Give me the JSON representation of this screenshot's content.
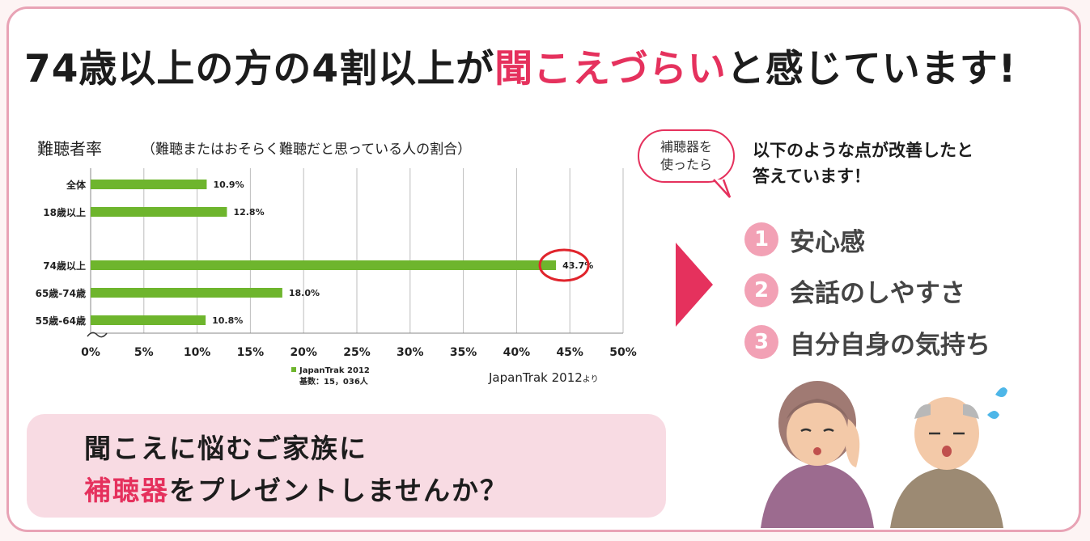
{
  "headline": {
    "part1": "74歳以上の方の4割以上が",
    "highlight": "聞こえづらい",
    "part2": "と感じています!"
  },
  "chart_header": {
    "title": "難聴者率",
    "subtitle": "（難聴またはおそらく難聴だと思っている人の割合）"
  },
  "chart_data": {
    "type": "bar",
    "orientation": "horizontal",
    "categories": [
      "全体",
      "18歳以上",
      "74歳以上",
      "65歳-74歳",
      "55歳-64歳"
    ],
    "values": [
      10.9,
      12.8,
      43.7,
      18.0,
      10.8
    ],
    "value_labels": [
      "10.9%",
      "12.8%",
      "43.7%",
      "18.0%",
      "10.8%"
    ],
    "xlim": [
      0,
      50
    ],
    "xticks": [
      "0%",
      "5%",
      "10%",
      "15%",
      "20%",
      "25%",
      "30%",
      "35%",
      "40%",
      "45%",
      "50%"
    ],
    "legend": {
      "series": "JapanTrak 2012",
      "base": "基数：15，036人",
      "position": "bottom"
    },
    "grid": true,
    "highlighted_category": "74歳以上",
    "colors": {
      "bar": "#6eb52d",
      "highlight_circle": "#e0242c"
    }
  },
  "source": {
    "text": "JapanTrak 2012",
    "suffix": "より"
  },
  "bubble": {
    "line1": "補聴器を",
    "line2": "使ったら"
  },
  "answer": {
    "line1": "以下のような点が改善したと",
    "line2": "答えています！"
  },
  "improvements": [
    {
      "num": "1",
      "label": "安心感"
    },
    {
      "num": "2",
      "label": "会話のしやすさ"
    },
    {
      "num": "3",
      "label": "自分自身の気持ち"
    }
  ],
  "cta": {
    "line1": "聞こえに悩むご家族に",
    "highlight": "補聴器",
    "line2_rest": "をプレゼントしませんか？"
  },
  "colors": {
    "accent": "#e5315d",
    "frame": "#e8a3b5",
    "cta_bg": "#f8dbe3",
    "number_circle": "#f2a1b5"
  }
}
